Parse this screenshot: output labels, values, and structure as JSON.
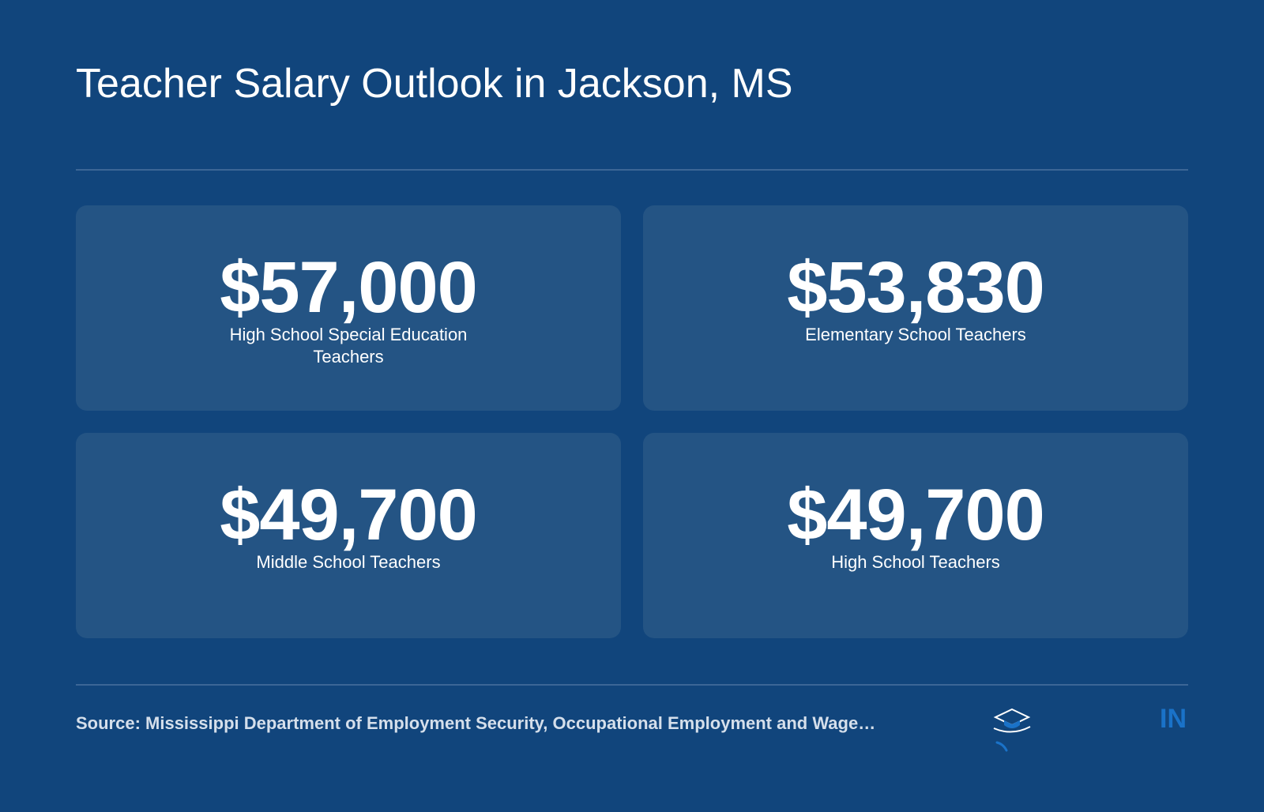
{
  "header": {
    "title": "Teacher Salary Outlook in Jackson, MS"
  },
  "cards": [
    {
      "value": "$57,000",
      "label": "High School Special Education Teachers"
    },
    {
      "value": "$53,830",
      "label": "Elementary School Teachers"
    },
    {
      "value": "$49,700",
      "label": "Middle School Teachers"
    },
    {
      "value": "$49,700",
      "label": "High School Teachers"
    }
  ],
  "footer": {
    "source": "Source: Mississippi Department of Employment Security, Occupational Employment and Wage…",
    "logo_icon": "graduation-cap-icon",
    "brand_text": "IN"
  },
  "colors": {
    "background": "#11457c",
    "card": "#245484",
    "brand": "#1a72c8"
  }
}
